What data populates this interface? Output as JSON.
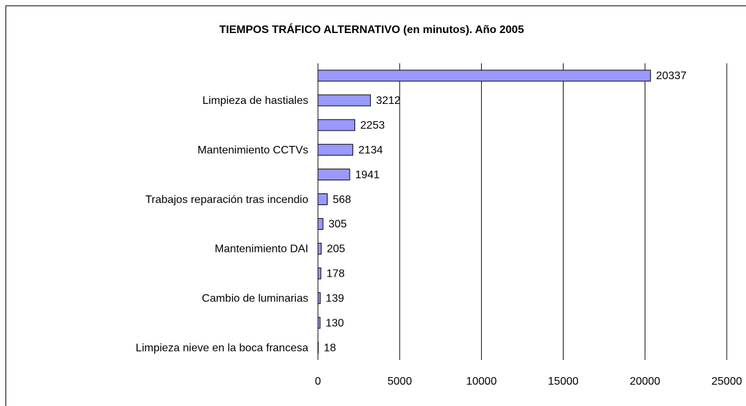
{
  "chart_data": {
    "type": "bar",
    "orientation": "horizontal",
    "title": "TIEMPOS TRÁFICO ALTERNATIVO (en minutos). Año 2005",
    "categories": [
      null,
      "Limpieza de hastiales",
      null,
      "Mantenimiento CCTVs",
      null,
      "Trabajos reparación tras incendio",
      null,
      "Mantenimiento DAI",
      null,
      "Cambio de luminarias",
      null,
      "Limpieza nieve en la boca francesa"
    ],
    "values": [
      20337,
      3212,
      2253,
      2134,
      1941,
      568,
      305,
      205,
      178,
      139,
      130,
      18
    ],
    "color": "#9999ff",
    "xlim": [
      0,
      25000
    ],
    "xticks": [
      0,
      5000,
      10000,
      15000,
      20000,
      25000
    ],
    "grid": true
  }
}
